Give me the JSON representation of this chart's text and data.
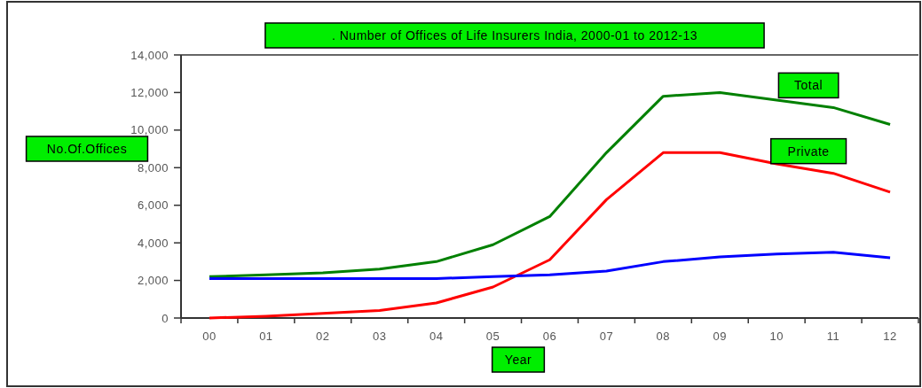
{
  "chart_data": {
    "type": "line",
    "title": ". Number of Offices of Life Insurers India, 2000-01 to 2012-13",
    "xlabel": "Year",
    "ylabel": "No.Of.Offices",
    "categories": [
      "00",
      "01",
      "02",
      "03",
      "04",
      "05",
      "06",
      "07",
      "08",
      "09",
      "10",
      "11",
      "12"
    ],
    "series": [
      {
        "name": "Total",
        "color": "#008000",
        "values": [
          2200,
          2300,
          2400,
          2600,
          3000,
          3900,
          5400,
          8800,
          11800,
          12000,
          11600,
          11200,
          10300
        ]
      },
      {
        "name": "Private",
        "color": "#ff0000",
        "values": [
          0,
          100,
          250,
          400,
          800,
          1650,
          3100,
          6300,
          8800,
          8800,
          8200,
          7700,
          6700
        ]
      },
      {
        "color": "#0000ff",
        "values": [
          2100,
          2100,
          2100,
          2100,
          2100,
          2200,
          2300,
          2500,
          3000,
          3250,
          3400,
          3500,
          3200
        ]
      }
    ],
    "ylim": [
      0,
      14000
    ],
    "yticks": [
      {
        "value": 0,
        "label": "0"
      },
      {
        "value": 2000,
        "label": "2,000"
      },
      {
        "value": 4000,
        "label": "4,000"
      },
      {
        "value": 6000,
        "label": "6,000"
      },
      {
        "value": 8000,
        "label": "8,000"
      },
      {
        "value": 10000,
        "label": "10,000"
      },
      {
        "value": 12000,
        "label": "12,000"
      },
      {
        "value": 14000,
        "label": "14,000"
      }
    ],
    "grid": false
  }
}
